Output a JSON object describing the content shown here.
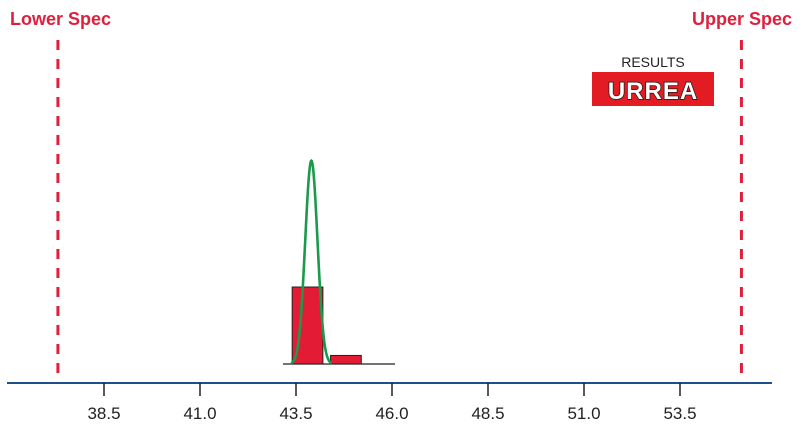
{
  "chart_data": {
    "type": "histogram",
    "title": "",
    "xlabel": "",
    "ylabel": "",
    "x_ticks": [
      "38.5",
      "41.0",
      "43.5",
      "46.0",
      "48.5",
      "51.0",
      "53.5"
    ],
    "x_tick_values": [
      38.5,
      41.0,
      43.5,
      46.0,
      48.5,
      51.0,
      53.5
    ],
    "xlim": [
      36.2,
      56.0
    ],
    "bins": [
      {
        "start": 43.4,
        "end": 44.2,
        "count": 9
      },
      {
        "start": 44.4,
        "end": 45.2,
        "count": 1
      }
    ],
    "count_max": 9,
    "normal_curve": {
      "mean": 43.9,
      "sd": 0.16,
      "peak_relative": 2.64
    },
    "lower_spec": {
      "label": "Lower Spec",
      "value": 37.3
    },
    "upper_spec": {
      "label": "Upper Spec",
      "value": 55.1
    },
    "grid": false,
    "legend": "none"
  },
  "logo": {
    "caption": "RESULTS",
    "text": "URREA"
  },
  "colors": {
    "spec": "#e01f3d",
    "bar_fill": "#e31b35",
    "bar_stroke": "#222222",
    "curve": "#1a9a4a",
    "axis": "#1f4e8c",
    "logo_bg": "#e31b23"
  }
}
